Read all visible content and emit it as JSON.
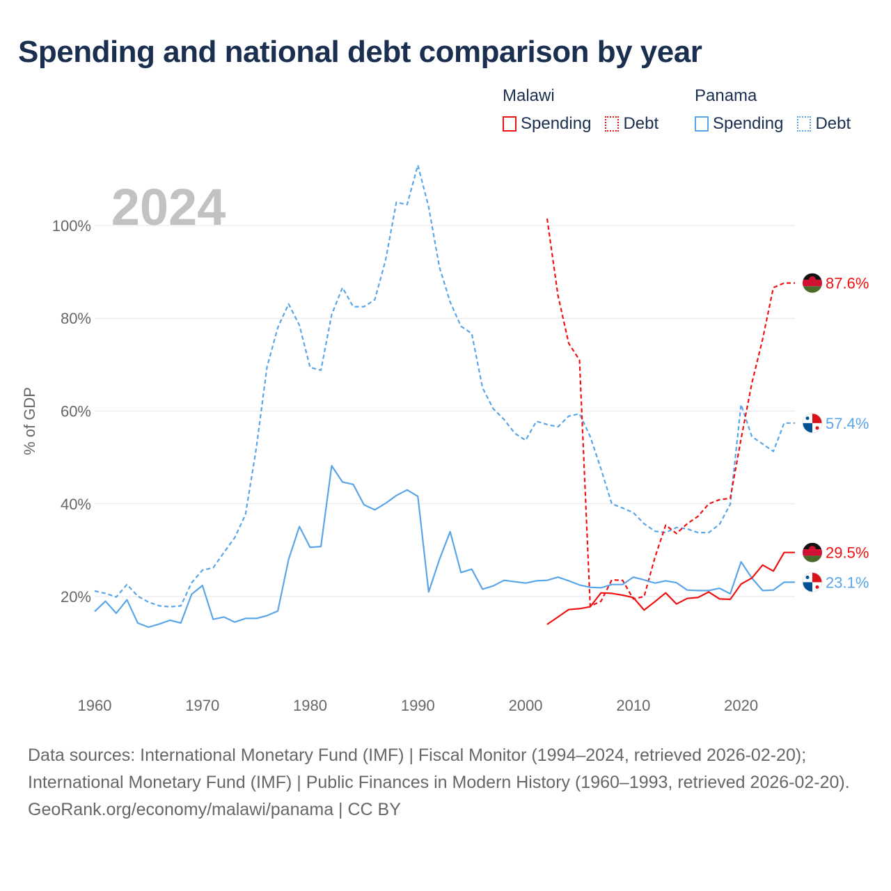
{
  "title": "Spending and national debt comparison by year",
  "legend": [
    {
      "country": "Malawi",
      "color": "#ee1111",
      "items": [
        {
          "label": "Spending",
          "style": "solid"
        },
        {
          "label": "Debt",
          "style": "dotted"
        }
      ]
    },
    {
      "country": "Panama",
      "color": "#5aa5e8",
      "items": [
        {
          "label": "Spending",
          "style": "solid"
        },
        {
          "label": "Debt",
          "style": "dotted"
        }
      ]
    }
  ],
  "chart_data": {
    "type": "line",
    "year_label": "2024",
    "ylabel": "% of GDP",
    "xlim": [
      1960,
      2025
    ],
    "ylim": [
      5,
      115
    ],
    "x_ticks": [
      1960,
      1970,
      1980,
      1990,
      2000,
      2010,
      2020
    ],
    "y_ticks": [
      {
        "value": 20,
        "label": "20%"
      },
      {
        "value": 40,
        "label": "40%"
      },
      {
        "value": 60,
        "label": "60%"
      },
      {
        "value": 80,
        "label": "80%"
      },
      {
        "value": 100,
        "label": "100%"
      }
    ],
    "series": [
      {
        "name": "Panama Debt",
        "country": "Panama",
        "kind": "Debt",
        "color": "#5aa5e8",
        "dashed": true,
        "end_label": "57.4%",
        "points": [
          [
            1960,
            21.2
          ],
          [
            1961,
            20.7
          ],
          [
            1962,
            19.9
          ],
          [
            1963,
            22.6
          ],
          [
            1964,
            20.1
          ],
          [
            1965,
            18.8
          ],
          [
            1966,
            18.0
          ],
          [
            1967,
            17.8
          ],
          [
            1968,
            18.0
          ],
          [
            1969,
            23.0
          ],
          [
            1970,
            25.7
          ],
          [
            1971,
            26.2
          ],
          [
            1972,
            29.5
          ],
          [
            1973,
            32.7
          ],
          [
            1974,
            37.7
          ],
          [
            1975,
            52.0
          ],
          [
            1976,
            69.5
          ],
          [
            1977,
            78.0
          ],
          [
            1978,
            83.1
          ],
          [
            1979,
            78.5
          ],
          [
            1980,
            69.4
          ],
          [
            1981,
            68.8
          ],
          [
            1982,
            80.8
          ],
          [
            1983,
            86.6
          ],
          [
            1984,
            82.5
          ],
          [
            1985,
            82.5
          ],
          [
            1986,
            84.0
          ],
          [
            1987,
            92.5
          ],
          [
            1988,
            105.0
          ],
          [
            1989,
            104.5
          ],
          [
            1990,
            113.0
          ],
          [
            1991,
            104.0
          ],
          [
            1992,
            91.0
          ],
          [
            1993,
            83.5
          ],
          [
            1994,
            78.3
          ],
          [
            1995,
            76.7
          ],
          [
            1996,
            65.0
          ],
          [
            1997,
            60.5
          ],
          [
            1998,
            58.2
          ],
          [
            1999,
            55.2
          ],
          [
            2000,
            53.7
          ],
          [
            2001,
            57.8
          ],
          [
            2002,
            57.1
          ],
          [
            2003,
            56.6
          ],
          [
            2004,
            58.9
          ],
          [
            2005,
            59.4
          ],
          [
            2006,
            54.5
          ],
          [
            2007,
            47.5
          ],
          [
            2008,
            40.0
          ],
          [
            2009,
            39.1
          ],
          [
            2010,
            38.1
          ],
          [
            2011,
            35.7
          ],
          [
            2012,
            34.1
          ],
          [
            2013,
            33.8
          ],
          [
            2014,
            34.9
          ],
          [
            2015,
            34.6
          ],
          [
            2016,
            33.8
          ],
          [
            2017,
            33.8
          ],
          [
            2018,
            35.6
          ],
          [
            2019,
            39.9
          ],
          [
            2020,
            61.4
          ],
          [
            2021,
            54.5
          ],
          [
            2022,
            52.9
          ],
          [
            2023,
            51.3
          ],
          [
            2024,
            57.4
          ],
          [
            2025,
            57.4
          ]
        ]
      },
      {
        "name": "Malawi Debt",
        "country": "Malawi",
        "kind": "Debt",
        "color": "#ee1111",
        "dashed": true,
        "end_label": "87.6%",
        "points": [
          [
            2002,
            101.5
          ],
          [
            2003,
            85.0
          ],
          [
            2004,
            74.6
          ],
          [
            2005,
            71.0
          ],
          [
            2006,
            17.9
          ],
          [
            2007,
            19.0
          ],
          [
            2008,
            23.6
          ],
          [
            2009,
            23.5
          ],
          [
            2010,
            19.5
          ],
          [
            2011,
            20.0
          ],
          [
            2012,
            28.4
          ],
          [
            2013,
            35.4
          ],
          [
            2014,
            33.6
          ],
          [
            2015,
            35.7
          ],
          [
            2016,
            37.3
          ],
          [
            2017,
            40.0
          ],
          [
            2018,
            40.9
          ],
          [
            2019,
            41.2
          ],
          [
            2020,
            54.0
          ],
          [
            2021,
            66.0
          ],
          [
            2022,
            75.5
          ],
          [
            2023,
            86.6
          ],
          [
            2024,
            87.6
          ],
          [
            2025,
            87.6
          ]
        ]
      },
      {
        "name": "Panama Spending",
        "country": "Panama",
        "kind": "Spending",
        "color": "#5aa5e8",
        "dashed": false,
        "end_label": "23.1%",
        "points": [
          [
            1960,
            16.8
          ],
          [
            1961,
            19.0
          ],
          [
            1962,
            16.4
          ],
          [
            1963,
            19.3
          ],
          [
            1964,
            14.3
          ],
          [
            1965,
            13.4
          ],
          [
            1966,
            14.1
          ],
          [
            1967,
            14.9
          ],
          [
            1968,
            14.3
          ],
          [
            1969,
            20.5
          ],
          [
            1970,
            22.4
          ],
          [
            1971,
            15.1
          ],
          [
            1972,
            15.6
          ],
          [
            1973,
            14.5
          ],
          [
            1974,
            15.3
          ],
          [
            1975,
            15.3
          ],
          [
            1976,
            15.9
          ],
          [
            1977,
            16.9
          ],
          [
            1978,
            28.0
          ],
          [
            1979,
            35.1
          ],
          [
            1980,
            30.6
          ],
          [
            1981,
            30.8
          ],
          [
            1982,
            48.2
          ],
          [
            1983,
            44.7
          ],
          [
            1984,
            44.2
          ],
          [
            1985,
            39.8
          ],
          [
            1986,
            38.7
          ],
          [
            1987,
            40.1
          ],
          [
            1988,
            41.8
          ],
          [
            1989,
            43.0
          ],
          [
            1990,
            41.6
          ],
          [
            1991,
            21.0
          ],
          [
            1992,
            28.0
          ],
          [
            1993,
            34.0
          ],
          [
            1994,
            25.2
          ],
          [
            1995,
            25.9
          ],
          [
            1996,
            21.6
          ],
          [
            1997,
            22.3
          ],
          [
            1998,
            23.5
          ],
          [
            1999,
            23.2
          ],
          [
            2000,
            22.9
          ],
          [
            2001,
            23.4
          ],
          [
            2002,
            23.5
          ],
          [
            2003,
            24.2
          ],
          [
            2004,
            23.4
          ],
          [
            2005,
            22.5
          ],
          [
            2006,
            22.0
          ],
          [
            2007,
            21.9
          ],
          [
            2008,
            22.6
          ],
          [
            2009,
            22.6
          ],
          [
            2010,
            24.2
          ],
          [
            2011,
            23.6
          ],
          [
            2012,
            22.9
          ],
          [
            2013,
            23.4
          ],
          [
            2014,
            23.0
          ],
          [
            2015,
            21.4
          ],
          [
            2016,
            21.3
          ],
          [
            2017,
            21.3
          ],
          [
            2018,
            21.8
          ],
          [
            2019,
            20.6
          ],
          [
            2020,
            27.5
          ],
          [
            2021,
            24.0
          ],
          [
            2022,
            21.3
          ],
          [
            2023,
            21.4
          ],
          [
            2024,
            23.1
          ],
          [
            2025,
            23.1
          ]
        ]
      },
      {
        "name": "Malawi Spending",
        "country": "Malawi",
        "kind": "Spending",
        "color": "#ee1111",
        "dashed": false,
        "end_label": "29.5%",
        "points": [
          [
            2002,
            14.0
          ],
          [
            2003,
            15.6
          ],
          [
            2004,
            17.2
          ],
          [
            2005,
            17.4
          ],
          [
            2006,
            17.8
          ],
          [
            2007,
            20.8
          ],
          [
            2008,
            20.7
          ],
          [
            2009,
            20.3
          ],
          [
            2010,
            19.8
          ],
          [
            2011,
            17.1
          ],
          [
            2012,
            18.9
          ],
          [
            2013,
            20.8
          ],
          [
            2014,
            18.4
          ],
          [
            2015,
            19.6
          ],
          [
            2016,
            19.8
          ],
          [
            2017,
            21.0
          ],
          [
            2018,
            19.5
          ],
          [
            2019,
            19.4
          ],
          [
            2020,
            22.7
          ],
          [
            2021,
            24.0
          ],
          [
            2022,
            26.8
          ],
          [
            2023,
            25.5
          ],
          [
            2024,
            29.5
          ],
          [
            2025,
            29.5
          ]
        ]
      }
    ]
  },
  "footer": {
    "sources": "Data sources: International Monetary Fund (IMF) | Fiscal Monitor (1994–2024, retrieved 2026-02-20); International Monetary Fund (IMF) | Public Finances in Modern History (1960–1993, retrieved 2026-02-20).",
    "credit": "GeoRank.org/economy/malawi/panama | CC BY"
  }
}
